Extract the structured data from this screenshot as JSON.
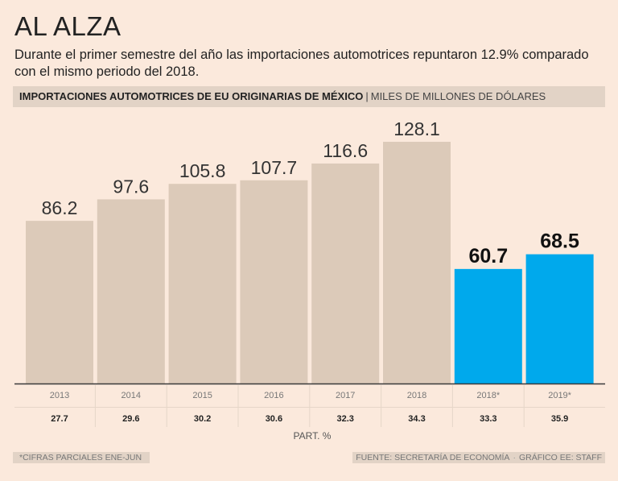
{
  "header": {
    "title": "AL ALZA",
    "subtitle": "Durante el primer semestre del año las importaciones automotrices repuntaron 12.9% comparado con el mismo periodo del 2018."
  },
  "chart_header": {
    "title": "IMPORTACIONES AUTOMOTRICES DE EU ORIGINARIAS DE MÉXICO",
    "separator": "|",
    "unit": "MILES DE MILLONES DE DÓLARES"
  },
  "chart_data": {
    "type": "bar",
    "title": "IMPORTACIONES AUTOMOTRICES DE EU ORIGINARIAS DE MÉXICO",
    "ylabel": "MILES DE MILLONES DE DÓLARES",
    "xlabel": "",
    "ylim": [
      0,
      128.1
    ],
    "categories": [
      "2013",
      "2014",
      "2015",
      "2016",
      "2017",
      "2018",
      "2018*",
      "2019*"
    ],
    "values": [
      86.2,
      97.6,
      105.8,
      107.7,
      116.6,
      128.1,
      60.7,
      68.5
    ],
    "value_labels": [
      "86.2",
      "97.6",
      "105.8",
      "107.7",
      "116.6",
      "128.1",
      "60.7",
      "68.5"
    ],
    "highlight": [
      false,
      false,
      false,
      false,
      false,
      false,
      true,
      true
    ],
    "participation": [
      "27.7",
      "29.6",
      "30.2",
      "30.6",
      "32.3",
      "34.3",
      "33.3",
      "35.9"
    ],
    "participation_label": "PART. %"
  },
  "colors": {
    "background": "#fbe9dc",
    "bar": "#dccab9",
    "bar_highlight": "#00a9ec",
    "header_band": "#e2d3c6",
    "baseline": "#3a3a3a"
  },
  "footer": {
    "note": "*CIFRAS PARCIALES ENE-JUN",
    "source": "FUENTE: SECRETARÍA DE ECONOMÍA",
    "credit": "GRÁFICO EE: STAFF"
  }
}
